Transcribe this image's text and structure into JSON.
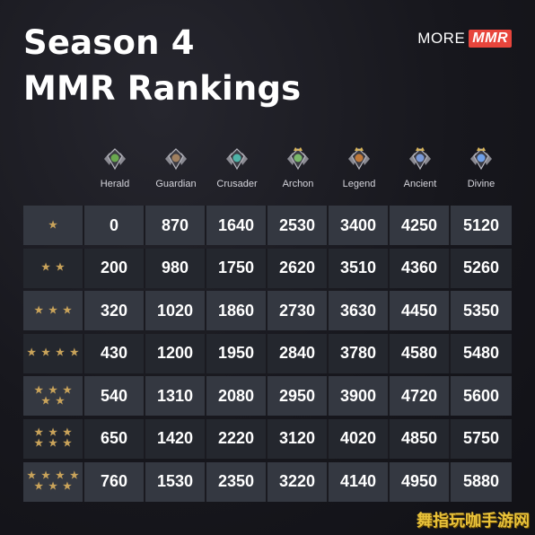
{
  "title_line1": "Season 4",
  "title_line2": "MMR Rankings",
  "logo": {
    "more": "MORE",
    "mmr": "MMR"
  },
  "columns": [
    {
      "label": "Herald",
      "icon": "herald-medal-icon",
      "color": "#6aa84f"
    },
    {
      "label": "Guardian",
      "icon": "guardian-medal-icon",
      "color": "#a08060"
    },
    {
      "label": "Crusader",
      "icon": "crusader-medal-icon",
      "color": "#4fb3a8"
    },
    {
      "label": "Archon",
      "icon": "archon-medal-icon",
      "color": "#7ab86a"
    },
    {
      "label": "Legend",
      "icon": "legend-medal-icon",
      "color": "#c0793a"
    },
    {
      "label": "Ancient",
      "icon": "ancient-medal-icon",
      "color": "#7a9ad8"
    },
    {
      "label": "Divine",
      "icon": "divine-medal-icon",
      "color": "#6fa0e8"
    }
  ],
  "rows": [
    {
      "stars": 1,
      "values": [
        "0",
        "870",
        "1640",
        "2530",
        "3400",
        "4250",
        "5120"
      ]
    },
    {
      "stars": 2,
      "values": [
        "200",
        "980",
        "1750",
        "2620",
        "3510",
        "4360",
        "5260"
      ]
    },
    {
      "stars": 3,
      "values": [
        "320",
        "1020",
        "1860",
        "2730",
        "3630",
        "4450",
        "5350"
      ]
    },
    {
      "stars": 4,
      "values": [
        "430",
        "1200",
        "1950",
        "2840",
        "3780",
        "4580",
        "5480"
      ]
    },
    {
      "stars": 5,
      "values": [
        "540",
        "1310",
        "2080",
        "2950",
        "3900",
        "4720",
        "5600"
      ]
    },
    {
      "stars": 6,
      "values": [
        "650",
        "1420",
        "2220",
        "3120",
        "4020",
        "4850",
        "5750"
      ]
    },
    {
      "stars": 7,
      "values": [
        "760",
        "1530",
        "2350",
        "3220",
        "4140",
        "4950",
        "5880"
      ]
    }
  ],
  "watermark": "舞指玩咖手游网"
}
